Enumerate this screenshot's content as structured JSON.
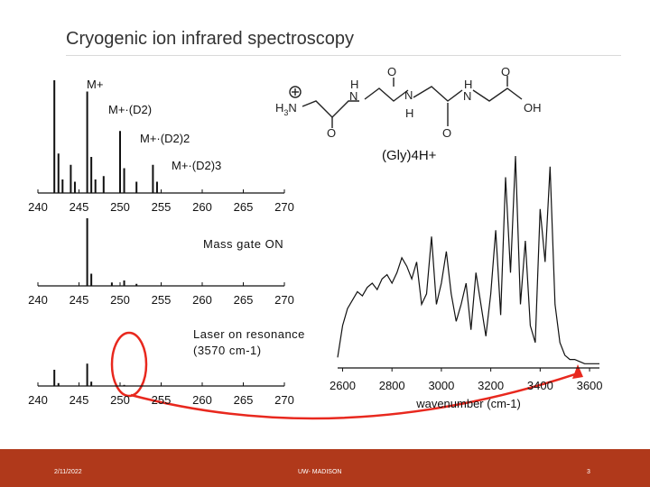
{
  "slide": {
    "title": "Cryogenic ion infrared spectroscopy",
    "footer_date": "2/11/2022",
    "footer_org": "UW- MADISON",
    "page_number": "3",
    "accent_color": "#b0391b",
    "highlight_color": "#e8281e"
  },
  "annotations": {
    "m_plus": "M+",
    "m_d2": "M+·(D2)",
    "m_d2_2": "M+·(D2)2",
    "m_d2_3": "M+·(D2)3",
    "molecule": "(Gly)4H+",
    "mass_gate": "Mass gate ON",
    "laser_line1": "Laser on resonance",
    "laser_line2": "(3570 cm-1)"
  },
  "chart_data": [
    {
      "type": "line",
      "panel": "mass spectrum, trap only",
      "x_ticks": [
        "240",
        "245",
        "250",
        "255",
        "260",
        "265",
        "270"
      ],
      "xlim": [
        240,
        270
      ],
      "peaks": [
        {
          "x": 242.0,
          "y": 1.0
        },
        {
          "x": 242.5,
          "y": 0.35
        },
        {
          "x": 243.0,
          "y": 0.12
        },
        {
          "x": 244.0,
          "y": 0.25
        },
        {
          "x": 244.5,
          "y": 0.1
        },
        {
          "x": 246.0,
          "y": 0.9
        },
        {
          "x": 246.5,
          "y": 0.32
        },
        {
          "x": 247.0,
          "y": 0.12
        },
        {
          "x": 248.0,
          "y": 0.15
        },
        {
          "x": 250.0,
          "y": 0.55
        },
        {
          "x": 250.5,
          "y": 0.22
        },
        {
          "x": 252.0,
          "y": 0.1
        },
        {
          "x": 254.0,
          "y": 0.25
        },
        {
          "x": 254.5,
          "y": 0.1
        }
      ]
    },
    {
      "type": "line",
      "panel": "mass spectrum, mass gate on",
      "x_ticks": [
        "240",
        "245",
        "250",
        "255",
        "260",
        "265",
        "270"
      ],
      "xlim": [
        240,
        270
      ],
      "peaks": [
        {
          "x": 246.0,
          "y": 1.0
        },
        {
          "x": 246.5,
          "y": 0.18
        },
        {
          "x": 249.0,
          "y": 0.05
        },
        {
          "x": 250.5,
          "y": 0.08
        },
        {
          "x": 252.0,
          "y": 0.03
        }
      ]
    },
    {
      "type": "line",
      "panel": "mass spectrum, laser on resonance",
      "x_ticks": [
        "240",
        "245",
        "250",
        "255",
        "260",
        "265",
        "270"
      ],
      "xlim": [
        240,
        270
      ],
      "peaks": [
        {
          "x": 242.0,
          "y": 0.45
        },
        {
          "x": 242.5,
          "y": 0.08
        },
        {
          "x": 246.0,
          "y": 0.62
        },
        {
          "x": 246.5,
          "y": 0.12
        },
        {
          "x": 250.5,
          "y": 0.03
        }
      ]
    },
    {
      "type": "line",
      "panel": "infrared spectrum",
      "xlabel": "wavenumber (cm-1)",
      "x_ticks": [
        "2600",
        "2800",
        "3000",
        "3200",
        "3400",
        "3600"
      ],
      "xlim": [
        2580,
        3640
      ],
      "x": [
        2580,
        2600,
        2620,
        2640,
        2660,
        2680,
        2700,
        2720,
        2740,
        2760,
        2780,
        2800,
        2820,
        2840,
        2860,
        2880,
        2900,
        2920,
        2940,
        2960,
        2980,
        3000,
        3020,
        3040,
        3060,
        3080,
        3100,
        3120,
        3140,
        3160,
        3180,
        3200,
        3220,
        3240,
        3260,
        3280,
        3300,
        3320,
        3340,
        3360,
        3380,
        3400,
        3420,
        3440,
        3460,
        3480,
        3500,
        3520,
        3540,
        3560,
        3580,
        3600,
        3620,
        3640
      ],
      "y": [
        0.05,
        0.2,
        0.28,
        0.32,
        0.36,
        0.34,
        0.38,
        0.4,
        0.37,
        0.42,
        0.44,
        0.4,
        0.45,
        0.52,
        0.48,
        0.42,
        0.5,
        0.3,
        0.35,
        0.62,
        0.3,
        0.4,
        0.55,
        0.35,
        0.22,
        0.3,
        0.4,
        0.18,
        0.45,
        0.3,
        0.15,
        0.35,
        0.65,
        0.25,
        0.9,
        0.45,
        1.0,
        0.3,
        0.6,
        0.2,
        0.12,
        0.75,
        0.5,
        0.95,
        0.3,
        0.12,
        0.06,
        0.04,
        0.04,
        0.03,
        0.02,
        0.02,
        0.02,
        0.02
      ]
    }
  ]
}
